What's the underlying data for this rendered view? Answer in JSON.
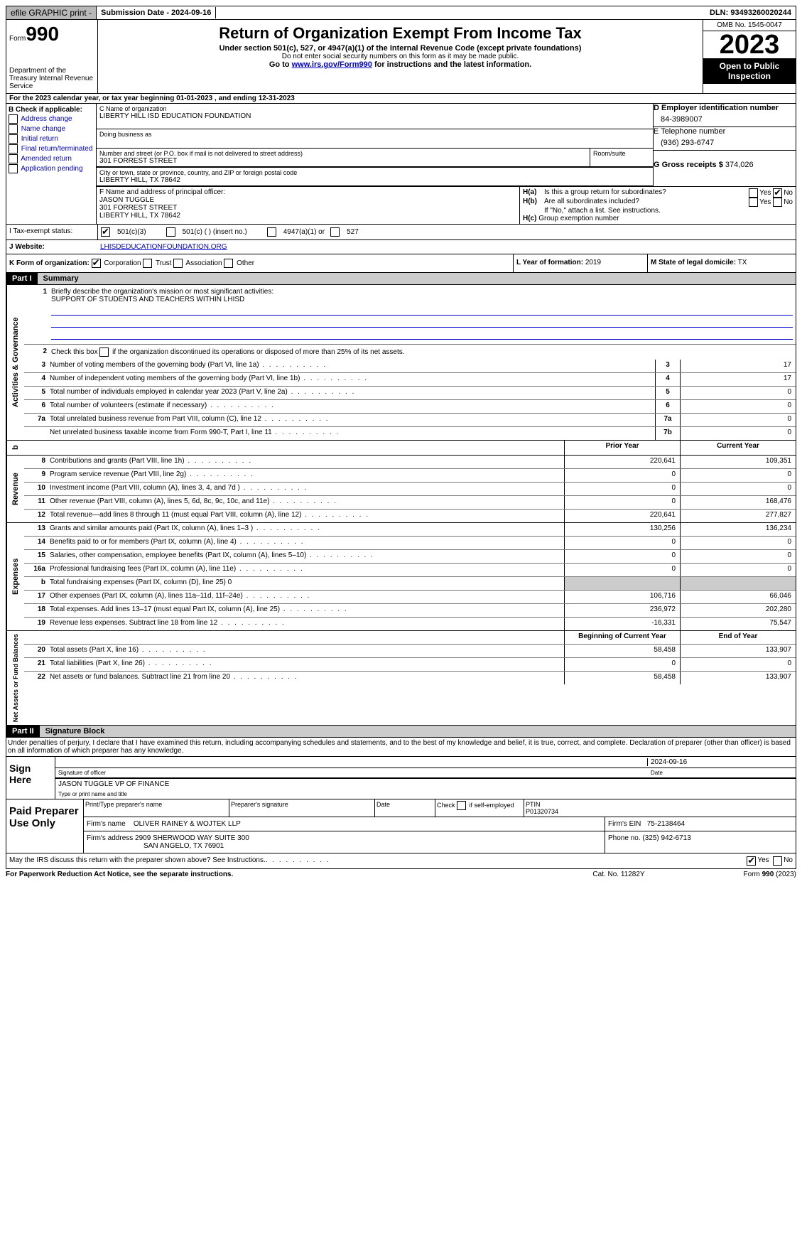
{
  "top": {
    "efile": "efile GRAPHIC print -",
    "submission": "Submission Date - 2024-09-16",
    "dln": "DLN: 93493260020244"
  },
  "header": {
    "form_prefix": "Form",
    "form_no": "990",
    "dept": "Department of the Treasury Internal Revenue Service",
    "title": "Return of Organization Exempt From Income Tax",
    "sub": "Under section 501(c), 527, or 4947(a)(1) of the Internal Revenue Code (except private foundations)",
    "sub2": "Do not enter social security numbers on this form as it may be made public.",
    "goto_pre": "Go to ",
    "goto_link": "www.irs.gov/Form990",
    "goto_post": " for instructions and the latest information.",
    "omb": "OMB No. 1545-0047",
    "year": "2023",
    "open": "Open to Public Inspection"
  },
  "sectA": "For the 2023 calendar year, or tax year beginning 01-01-2023   , and ending 12-31-2023",
  "boxB": {
    "title": "B Check if applicable:",
    "opts": [
      "Address change",
      "Name change",
      "Initial return",
      "Final return/terminated",
      "Amended return",
      "Application pending"
    ]
  },
  "boxC": {
    "name_lbl": "C Name of organization",
    "name": "LIBERTY HILL ISD EDUCATION FOUNDATION",
    "dba_lbl": "Doing business as",
    "addr_lbl": "Number and street (or P.O. box if mail is not delivered to street address)",
    "addr": "301 FORREST STREET",
    "room_lbl": "Room/suite",
    "city_lbl": "City or town, state or province, country, and ZIP or foreign postal code",
    "city": "LIBERTY HILL, TX  78642"
  },
  "boxD": {
    "lbl": "D Employer identification number",
    "val": "84-3989007"
  },
  "boxE": {
    "lbl": "E Telephone number",
    "val": "(936) 293-6747"
  },
  "boxG": {
    "lbl": "G Gross receipts $",
    "val": "374,026"
  },
  "boxF": {
    "lbl": "F  Name and address of principal officer:",
    "name": "JASON TUGGLE",
    "addr": "301 FORREST STREET",
    "city": "LIBERTY HILL, TX  78642"
  },
  "boxH": {
    "a": "Is this a group return for subordinates?",
    "b": "Are all subordinates included?",
    "note": "If \"No,\" attach a list. See instructions.",
    "c": "Group exemption number"
  },
  "taxStatus": {
    "lbl": "I  Tax-exempt status:",
    "o1": "501(c)(3)",
    "o2": "501(c) (  ) (insert no.)",
    "o3": "4947(a)(1) or",
    "o4": "527"
  },
  "website": {
    "lbl": "J  Website:",
    "val": "LHISDEDUCATIONFOUNDATION.ORG"
  },
  "korg": {
    "k": "K Form of organization:",
    "opts": [
      "Corporation",
      "Trust",
      "Association",
      "Other"
    ],
    "l_lbl": "L Year of formation:",
    "l_val": "2019",
    "m_lbl": "M State of legal domicile:",
    "m_val": "TX"
  },
  "part1": {
    "hdr": "Part I",
    "title": "Summary"
  },
  "summary": {
    "l1": "Briefly describe the organization's mission or most significant activities:",
    "l1v": "SUPPORT OF STUDENTS AND TEACHERS WITHIN LHISD",
    "l2": "Check this box      if the organization discontinued its operations or disposed of more than 25% of its net assets.",
    "rows": [
      {
        "n": "3",
        "d": "Number of voting members of the governing body (Part VI, line 1a)",
        "r": "3",
        "a": "",
        "b": "17",
        "single": true
      },
      {
        "n": "4",
        "d": "Number of independent voting members of the governing body (Part VI, line 1b)",
        "r": "4",
        "a": "",
        "b": "17",
        "single": true
      },
      {
        "n": "5",
        "d": "Total number of individuals employed in calendar year 2023 (Part V, line 2a)",
        "r": "5",
        "a": "",
        "b": "0",
        "single": true
      },
      {
        "n": "6",
        "d": "Total number of volunteers (estimate if necessary)",
        "r": "6",
        "a": "",
        "b": "0",
        "single": true
      },
      {
        "n": "7a",
        "d": "Total unrelated business revenue from Part VIII, column (C), line 12",
        "r": "7a",
        "a": "",
        "b": "0",
        "single": true
      },
      {
        "n": "",
        "d": "Net unrelated business taxable income from Form 990-T, Part I, line 11",
        "r": "7b",
        "a": "",
        "b": "0",
        "single": true
      }
    ],
    "hdr_prior": "Prior Year",
    "hdr_curr": "Current Year",
    "rev": [
      {
        "n": "8",
        "d": "Contributions and grants (Part VIII, line 1h)",
        "a": "220,641",
        "b": "109,351"
      },
      {
        "n": "9",
        "d": "Program service revenue (Part VIII, line 2g)",
        "a": "0",
        "b": "0"
      },
      {
        "n": "10",
        "d": "Investment income (Part VIII, column (A), lines 3, 4, and 7d )",
        "a": "0",
        "b": "0"
      },
      {
        "n": "11",
        "d": "Other revenue (Part VIII, column (A), lines 5, 6d, 8c, 9c, 10c, and 11e)",
        "a": "0",
        "b": "168,476"
      },
      {
        "n": "12",
        "d": "Total revenue—add lines 8 through 11 (must equal Part VIII, column (A), line 12)",
        "a": "220,641",
        "b": "277,827"
      }
    ],
    "exp": [
      {
        "n": "13",
        "d": "Grants and similar amounts paid (Part IX, column (A), lines 1–3 )",
        "a": "130,256",
        "b": "136,234"
      },
      {
        "n": "14",
        "d": "Benefits paid to or for members (Part IX, column (A), line 4)",
        "a": "0",
        "b": "0"
      },
      {
        "n": "15",
        "d": "Salaries, other compensation, employee benefits (Part IX, column (A), lines 5–10)",
        "a": "0",
        "b": "0"
      },
      {
        "n": "16a",
        "d": "Professional fundraising fees (Part IX, column (A), line 11e)",
        "a": "0",
        "b": "0"
      },
      {
        "n": "b",
        "d": "Total fundraising expenses (Part IX, column (D), line 25) 0",
        "a": "",
        "b": "",
        "grey": true
      },
      {
        "n": "17",
        "d": "Other expenses (Part IX, column (A), lines 11a–11d, 11f–24e)",
        "a": "106,716",
        "b": "66,046"
      },
      {
        "n": "18",
        "d": "Total expenses. Add lines 13–17 (must equal Part IX, column (A), line 25)",
        "a": "236,972",
        "b": "202,280"
      },
      {
        "n": "19",
        "d": "Revenue less expenses. Subtract line 18 from line 12",
        "a": "-16,331",
        "b": "75,547"
      }
    ],
    "hdr_beg": "Beginning of Current Year",
    "hdr_end": "End of Year",
    "net": [
      {
        "n": "20",
        "d": "Total assets (Part X, line 16)",
        "a": "58,458",
        "b": "133,907"
      },
      {
        "n": "21",
        "d": "Total liabilities (Part X, line 26)",
        "a": "0",
        "b": "0"
      },
      {
        "n": "22",
        "d": "Net assets or fund balances. Subtract line 21 from line 20",
        "a": "58,458",
        "b": "133,907"
      }
    ],
    "side_ag": "Activities & Governance",
    "side_rev": "Revenue",
    "side_exp": "Expenses",
    "side_net": "Net Assets or Fund Balances"
  },
  "part2": {
    "hdr": "Part II",
    "title": "Signature Block",
    "decl": "Under penalties of perjury, I declare that I have examined this return, including accompanying schedules and statements, and to the best of my knowledge and belief, it is true, correct, and complete. Declaration of preparer (other than officer) is based on all information of which preparer has any knowledge."
  },
  "sign": {
    "side": "Sign Here",
    "date": "2024-09-16",
    "sig_lbl": "Signature of officer",
    "date_lbl": "Date",
    "name": "JASON TUGGLE  VP OF FINANCE",
    "name_lbl": "Type or print name and title"
  },
  "prep": {
    "side": "Paid Preparer Use Only",
    "h1": "Print/Type preparer's name",
    "h2": "Preparer's signature",
    "h3": "Date",
    "h4_pre": "Check",
    "h4": "if self-employed",
    "h5": "PTIN",
    "ptin": "P01320734",
    "firm_lbl": "Firm's name",
    "firm": "OLIVER RAINEY & WOJTEK LLP",
    "ein_lbl": "Firm's EIN",
    "ein": "75-2138464",
    "addr_lbl": "Firm's address",
    "addr1": "2909 SHERWOOD WAY SUITE 300",
    "addr2": "SAN ANGELO, TX  76901",
    "phone_lbl": "Phone no.",
    "phone": "(325) 942-6713"
  },
  "discuss": "May the IRS discuss this return with the preparer shown above? See Instructions.",
  "yes": "Yes",
  "no": "No",
  "footer": {
    "l": "For Paperwork Reduction Act Notice, see the separate instructions.",
    "m": "Cat. No. 11282Y",
    "r": "Form 990 (2023)"
  }
}
